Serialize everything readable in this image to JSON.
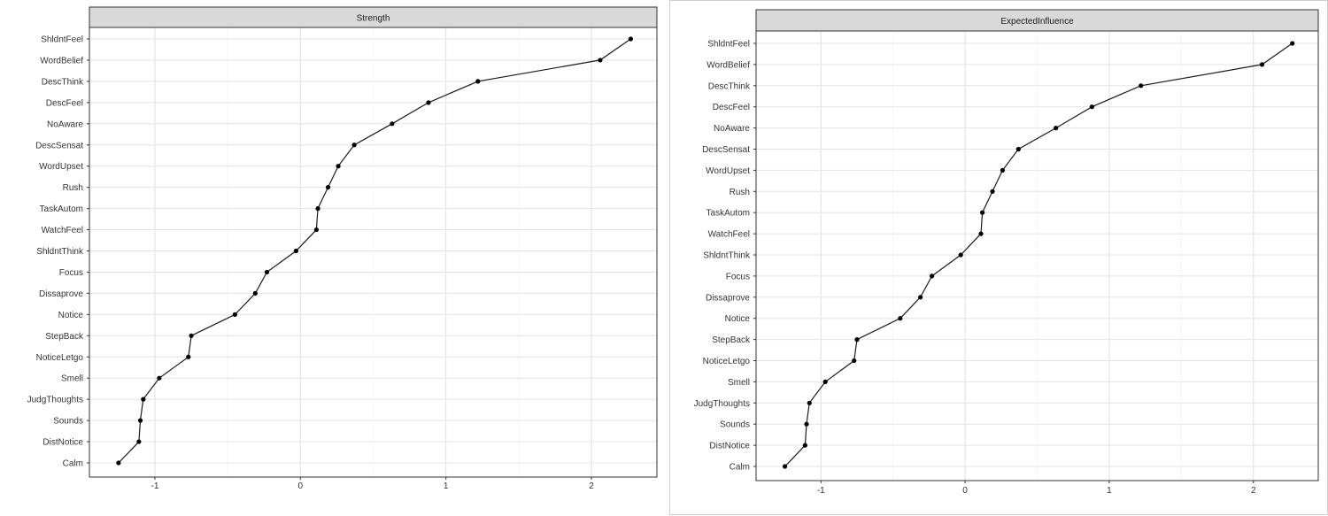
{
  "chart_data": [
    {
      "type": "line",
      "title": "Strength",
      "categories": [
        "Calm",
        "DistNotice",
        "Sounds",
        "JudgThoughts",
        "Smell",
        "NoticeLetgo",
        "StepBack",
        "Notice",
        "Dissaprove",
        "Focus",
        "ShldntThink",
        "WatchFeel",
        "TaskAutom",
        "Rush",
        "WordUpset",
        "DescSensat",
        "NoAware",
        "DescFeel",
        "DescThink",
        "WordBelief",
        "ShldntFeel"
      ],
      "values": [
        -1.25,
        -1.11,
        -1.1,
        -1.08,
        -0.97,
        -0.77,
        -0.75,
        -0.45,
        -0.31,
        -0.23,
        -0.03,
        0.11,
        0.12,
        0.19,
        0.26,
        0.37,
        0.63,
        0.88,
        1.22,
        2.06,
        2.27
      ],
      "x_ticks": [
        "-1",
        "0",
        "1",
        "2"
      ],
      "xlim": [
        -1.45,
        2.45
      ],
      "grid": true
    },
    {
      "type": "line",
      "title": "ExpectedInfluence",
      "categories": [
        "Calm",
        "DistNotice",
        "Sounds",
        "JudgThoughts",
        "Smell",
        "NoticeLetgo",
        "StepBack",
        "Notice",
        "Dissaprove",
        "Focus",
        "ShldntThink",
        "WatchFeel",
        "TaskAutom",
        "Rush",
        "WordUpset",
        "DescSensat",
        "NoAware",
        "DescFeel",
        "DescThink",
        "WordBelief",
        "ShldntFeel"
      ],
      "values": [
        -1.25,
        -1.11,
        -1.1,
        -1.08,
        -0.97,
        -0.77,
        -0.75,
        -0.45,
        -0.31,
        -0.23,
        -0.03,
        0.11,
        0.12,
        0.19,
        0.26,
        0.37,
        0.63,
        0.88,
        1.22,
        2.06,
        2.27
      ],
      "x_ticks": [
        "-1",
        "0",
        "1",
        "2"
      ],
      "xlim": [
        -1.45,
        2.45
      ],
      "grid": true
    }
  ]
}
